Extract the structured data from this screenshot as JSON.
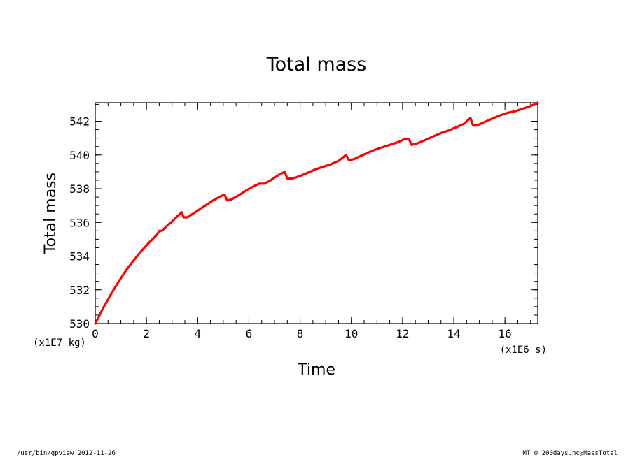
{
  "chart_data": {
    "type": "line",
    "title": "Total mass",
    "xlabel": "Time",
    "ylabel": "Total mass",
    "x_unit": "(x1E6 s)",
    "y_unit": "(x1E7 kg)",
    "xlim": [
      0,
      17.28
    ],
    "ylim": [
      530,
      543.1
    ],
    "x_ticks": [
      0,
      2,
      4,
      6,
      8,
      10,
      12,
      14,
      16
    ],
    "y_ticks": [
      530,
      532,
      534,
      536,
      538,
      540,
      542
    ],
    "x_tick_labels": [
      "0",
      "2",
      "4",
      "6",
      "8",
      "10",
      "12",
      "14",
      "16"
    ],
    "y_tick_labels": [
      "530",
      "532",
      "534",
      "536",
      "538",
      "540",
      "542"
    ],
    "x_minor_step": 0.5,
    "y_minor_step": 0.5,
    "grid": false,
    "line_color": "#ff0000",
    "series": [
      {
        "x": [
          0,
          0.3,
          0.6,
          0.9,
          1.2,
          1.5,
          1.8,
          2.1,
          2.4,
          2.5,
          2.6,
          2.8,
          3.0,
          3.2,
          3.38,
          3.45,
          3.6,
          3.8,
          4.0,
          4.3,
          4.6,
          4.9,
          5.05,
          5.15,
          5.3,
          5.6,
          5.9,
          6.2,
          6.4,
          6.6,
          6.8,
          7.0,
          7.2,
          7.4,
          7.5,
          7.7,
          8.0,
          8.3,
          8.6,
          8.9,
          9.2,
          9.5,
          9.75,
          9.8,
          9.9,
          10.1,
          10.3,
          10.6,
          10.9,
          11.2,
          11.5,
          11.8,
          12.1,
          12.25,
          12.35,
          12.6,
          12.9,
          13.2,
          13.5,
          13.8,
          14.1,
          14.4,
          14.65,
          14.75,
          14.9,
          15.2,
          15.5,
          15.8,
          16.1,
          16.4,
          16.7,
          17.0,
          17.28
        ],
        "y": [
          530,
          530.9,
          531.7,
          532.45,
          533.15,
          533.75,
          534.3,
          534.8,
          535.25,
          535.5,
          535.5,
          535.8,
          536.05,
          536.35,
          536.6,
          536.3,
          536.3,
          536.5,
          536.7,
          537.0,
          537.3,
          537.55,
          537.65,
          537.3,
          537.35,
          537.6,
          537.9,
          538.15,
          538.3,
          538.3,
          538.45,
          538.65,
          538.85,
          539.0,
          538.6,
          538.6,
          538.75,
          538.95,
          539.15,
          539.3,
          539.45,
          539.65,
          539.95,
          540.0,
          539.7,
          539.75,
          539.9,
          540.1,
          540.3,
          540.45,
          540.6,
          540.75,
          540.95,
          540.95,
          540.6,
          540.7,
          540.9,
          541.1,
          541.3,
          541.45,
          541.65,
          541.85,
          542.2,
          541.75,
          541.75,
          541.95,
          542.15,
          542.35,
          542.5,
          542.6,
          542.75,
          542.9,
          543.1
        ]
      }
    ]
  },
  "footer": {
    "left": "/usr/bin/gpview  2012-11-26",
    "right": "MT_0_200days.nc@MassTotal"
  }
}
